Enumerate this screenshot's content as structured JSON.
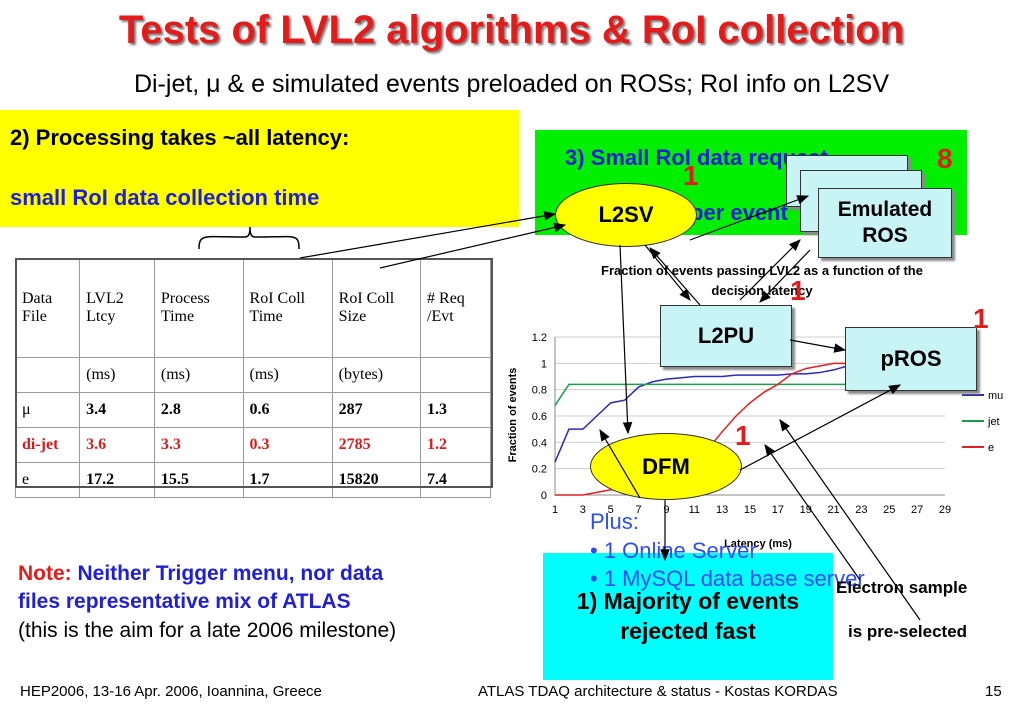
{
  "slide": {
    "title": "Tests of LVL2 algorithms & RoI collection",
    "subtitle": "Di-jet, μ & e simulated events preloaded on ROSs; RoI info on L2SV",
    "processing_line": "2) Processing takes ~all latency:",
    "collection_line": "small RoI data collection time",
    "green_text1": "3) Small RoI data request",
    "green_text2": "per event",
    "nodes": {
      "l2sv": "L2SV",
      "emulated_ros": "Emulated ROS",
      "l2pu": "L2PU",
      "pros": "pROS",
      "dfm": "DFM"
    },
    "counts": {
      "l2sv": "1",
      "ros": "8",
      "l2pu": "1",
      "pros": "1",
      "dfm": "1"
    },
    "cyan_text": "1) Majority of events rejected fast",
    "plus_lines": [
      "Plus:",
      "• 1 Online Server",
      "• 1 MySQL data base server"
    ],
    "note_label": "Note:",
    "note_blue1": " Neither Trigger menu, nor data",
    "note_blue2": "files representative mix of ATLAS",
    "note_black": "(this is the aim for a late 2006 milestone)",
    "electron1": "Electron sample",
    "electron2": "is pre-selected",
    "footer_left": "HEP2006, 13-16 Apr. 2006, Ioannina, Greece",
    "footer_center": "ATLAS TDAQ architecture & status - Kostas KORDAS",
    "page_number": "15"
  },
  "table": {
    "headers": [
      "Data File",
      "LVL2 Ltcy",
      "Process Time",
      "RoI Coll Time",
      "RoI Coll Size",
      "# Req /Evt"
    ],
    "units": [
      "",
      "(ms)",
      "(ms)",
      "(ms)",
      "(bytes)",
      ""
    ],
    "rows": [
      [
        "μ",
        "3.4",
        "2.8",
        "0.6",
        "287",
        "1.3"
      ],
      [
        "di-jet",
        "3.6",
        "3.3",
        "0.3",
        "2785",
        "1.2"
      ],
      [
        "e",
        "17.2",
        "15.5",
        "1.7",
        "15820",
        "7.4"
      ]
    ]
  },
  "chart_data": {
    "type": "line",
    "title": "Fraction of events passing LVL2 as a function of the decision latency",
    "xlabel": "Latency (ms)",
    "ylabel": "Fraction of events",
    "xlim": [
      1,
      29
    ],
    "ylim": [
      0,
      1.2
    ],
    "xticks": [
      "1",
      "3",
      "5",
      "7",
      "9",
      "11",
      "13",
      "15",
      "17",
      "19",
      "21",
      "23",
      "25",
      "27",
      "29"
    ],
    "yticks": [
      "0",
      "0.2",
      "0.4",
      "0.6",
      "0.8",
      "1",
      "1.2"
    ],
    "legend_position": "right",
    "series": [
      {
        "name": "mu",
        "color": "#2b2bb8",
        "x": [
          1,
          2,
          3,
          4,
          5,
          6,
          7,
          8,
          9,
          10,
          11,
          12,
          13,
          14,
          15,
          16,
          17,
          18,
          19,
          20,
          21,
          22,
          23,
          24,
          25
        ],
        "y": [
          0.25,
          0.5,
          0.5,
          0.6,
          0.7,
          0.72,
          0.82,
          0.86,
          0.88,
          0.89,
          0.9,
          0.9,
          0.9,
          0.91,
          0.91,
          0.91,
          0.91,
          0.92,
          0.92,
          0.93,
          0.95,
          0.98,
          1.0,
          1.0,
          1.0
        ]
      },
      {
        "name": "jet",
        "color": "#1f9b4e",
        "x": [
          1,
          2,
          3,
          4,
          5,
          6,
          7,
          8,
          9,
          10,
          11,
          12,
          13,
          14,
          15,
          16,
          17,
          18,
          19,
          20,
          21,
          22,
          23,
          24,
          25
        ],
        "y": [
          0.68,
          0.84,
          0.84,
          0.84,
          0.84,
          0.84,
          0.84,
          0.84,
          0.84,
          0.84,
          0.84,
          0.84,
          0.84,
          0.84,
          0.84,
          0.84,
          0.84,
          0.84,
          0.84,
          0.84,
          0.84,
          0.84,
          0.84,
          0.84,
          0.84
        ]
      },
      {
        "name": "e",
        "color": "#e02020",
        "x": [
          1,
          2,
          3,
          4,
          5,
          6,
          7,
          8,
          9,
          10,
          11,
          12,
          13,
          14,
          15,
          16,
          17,
          18,
          19,
          20,
          21,
          22,
          23,
          24,
          25
        ],
        "y": [
          0.0,
          0.0,
          0.0,
          0.02,
          0.04,
          0.04,
          0.05,
          0.1,
          0.15,
          0.2,
          0.25,
          0.35,
          0.48,
          0.6,
          0.7,
          0.78,
          0.84,
          0.92,
          0.96,
          0.98,
          1.0,
          1.0,
          1.0,
          1.0,
          1.0
        ]
      }
    ]
  }
}
